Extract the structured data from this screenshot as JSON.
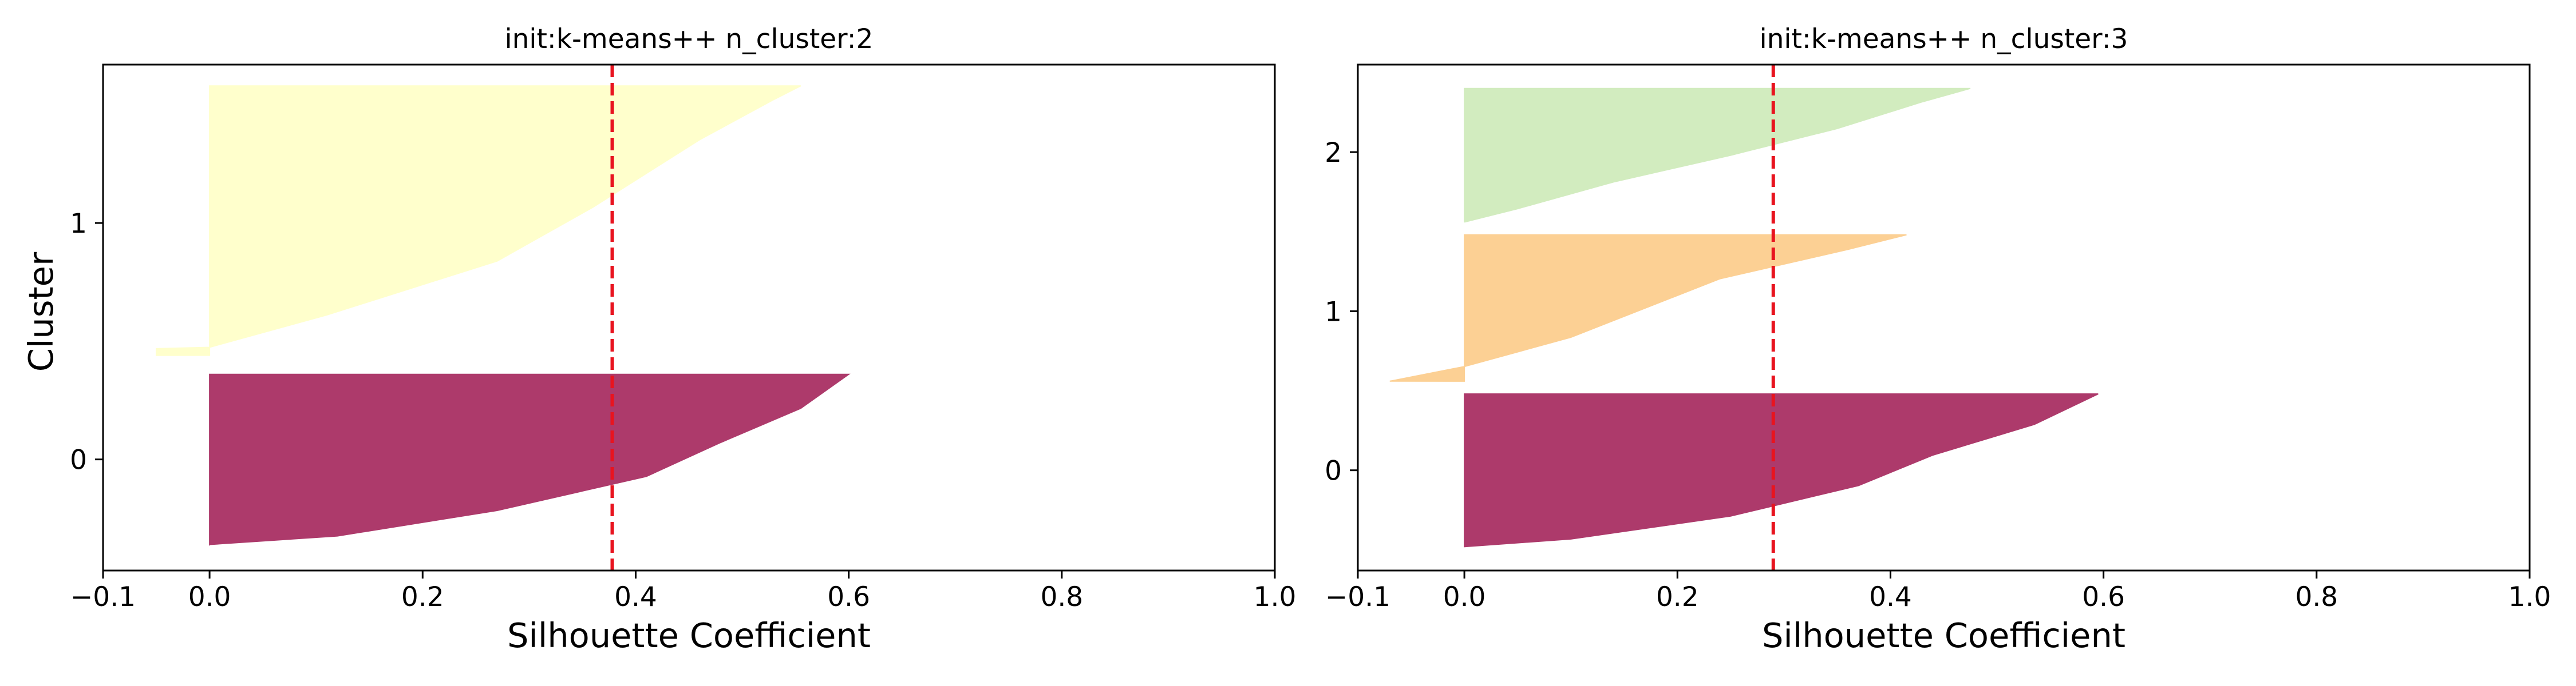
{
  "chart_data": [
    {
      "type": "area",
      "title": "init:k-means++  n_cluster:2",
      "xlabel": "Silhouette Coefficient",
      "ylabel": "Cluster",
      "xlim": [
        -0.1,
        1.0
      ],
      "ylim": [
        -0.47,
        1.67
      ],
      "xticks": [
        -0.1,
        0.0,
        0.2,
        0.4,
        0.6,
        0.8,
        1.0
      ],
      "xtick_labels": [
        "−0.1",
        "0.0",
        "0.2",
        "0.4",
        "0.6",
        "0.8",
        "1.0"
      ],
      "yticks": [
        0,
        1
      ],
      "ytick_labels": [
        "0",
        "1"
      ],
      "average_silhouette": 0.378,
      "grid": false,
      "series": [
        {
          "cluster": 0,
          "color": "#ad3a6b",
          "y_bottom": -0.36,
          "y_top": 0.36,
          "profile": [
            [
              0.0,
              0.6
            ],
            [
              0.2,
              0.555
            ],
            [
              0.4,
              0.48
            ],
            [
              0.6,
              0.41
            ],
            [
              0.8,
              0.27
            ],
            [
              0.95,
              0.12
            ],
            [
              1.0,
              0.0
            ]
          ]
        },
        {
          "cluster": 1,
          "color": "#ffffcc",
          "y_bottom": 0.44,
          "y_top": 1.58,
          "profile": [
            [
              0.0,
              0.555
            ],
            [
              0.05,
              0.53
            ],
            [
              0.2,
              0.46
            ],
            [
              0.45,
              0.36
            ],
            [
              0.65,
              0.27
            ],
            [
              0.85,
              0.11
            ],
            [
              0.97,
              0.0
            ],
            [
              0.975,
              -0.05
            ],
            [
              1.0,
              -0.05
            ]
          ]
        }
      ]
    },
    {
      "type": "area",
      "title": "init:k-means++  n_cluster:3",
      "xlabel": "Silhouette Coefficient",
      "ylabel": "",
      "xlim": [
        -0.1,
        1.0
      ],
      "ylim": [
        -0.63,
        2.55
      ],
      "xticks": [
        -0.1,
        0.0,
        0.2,
        0.4,
        0.6,
        0.8,
        1.0
      ],
      "xtick_labels": [
        "−0.1",
        "0.0",
        "0.2",
        "0.4",
        "0.6",
        "0.8",
        "1.0"
      ],
      "yticks": [
        0,
        1,
        2
      ],
      "ytick_labels": [
        "0",
        "1",
        "2"
      ],
      "average_silhouette": 0.29,
      "grid": false,
      "series": [
        {
          "cluster": 0,
          "color": "#ad3a6b",
          "y_bottom": -0.48,
          "y_top": 0.48,
          "profile": [
            [
              0.0,
              0.595
            ],
            [
              0.2,
              0.535
            ],
            [
              0.4,
              0.44
            ],
            [
              0.6,
              0.37
            ],
            [
              0.8,
              0.25
            ],
            [
              0.95,
              0.1
            ],
            [
              1.0,
              0.0
            ]
          ]
        },
        {
          "cluster": 1,
          "color": "#fcd094",
          "y_bottom": 0.56,
          "y_top": 1.48,
          "profile": [
            [
              0.0,
              0.415
            ],
            [
              0.1,
              0.36
            ],
            [
              0.3,
              0.24
            ],
            [
              0.5,
              0.17
            ],
            [
              0.7,
              0.1
            ],
            [
              0.8,
              0.05
            ],
            [
              0.9,
              0.0
            ],
            [
              0.95,
              -0.035
            ],
            [
              1.0,
              -0.07
            ]
          ]
        },
        {
          "cluster": 2,
          "color": "#d2ecbf",
          "y_bottom": 1.56,
          "y_top": 2.4,
          "profile": [
            [
              0.0,
              0.475
            ],
            [
              0.1,
              0.43
            ],
            [
              0.3,
              0.35
            ],
            [
              0.5,
              0.25
            ],
            [
              0.7,
              0.14
            ],
            [
              0.9,
              0.05
            ],
            [
              1.0,
              0.0
            ]
          ]
        }
      ]
    }
  ]
}
